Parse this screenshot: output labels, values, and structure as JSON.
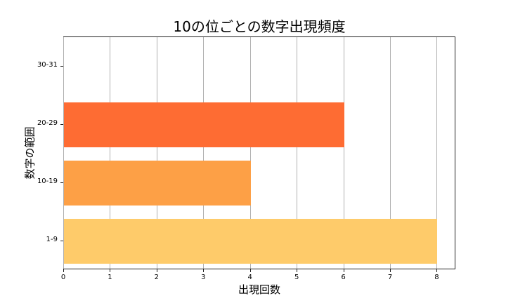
{
  "chart_data": {
    "type": "bar",
    "orientation": "horizontal",
    "title": "10の位ごとの数字出現頻度",
    "xlabel": "出現回数",
    "ylabel": "数字の範囲",
    "categories": [
      "1-9",
      "10-19",
      "20-29",
      "30-31"
    ],
    "values": [
      8,
      4,
      6,
      0
    ],
    "colors": [
      "#fecb6a",
      "#fda046",
      "#fe6c33",
      "#e8261f"
    ],
    "xlim": [
      0,
      8.4
    ],
    "xticks": [
      "0",
      "1",
      "2",
      "3",
      "4",
      "5",
      "6",
      "7",
      "8"
    ],
    "grid": "x-axis vertical gridlines",
    "legend": null
  }
}
